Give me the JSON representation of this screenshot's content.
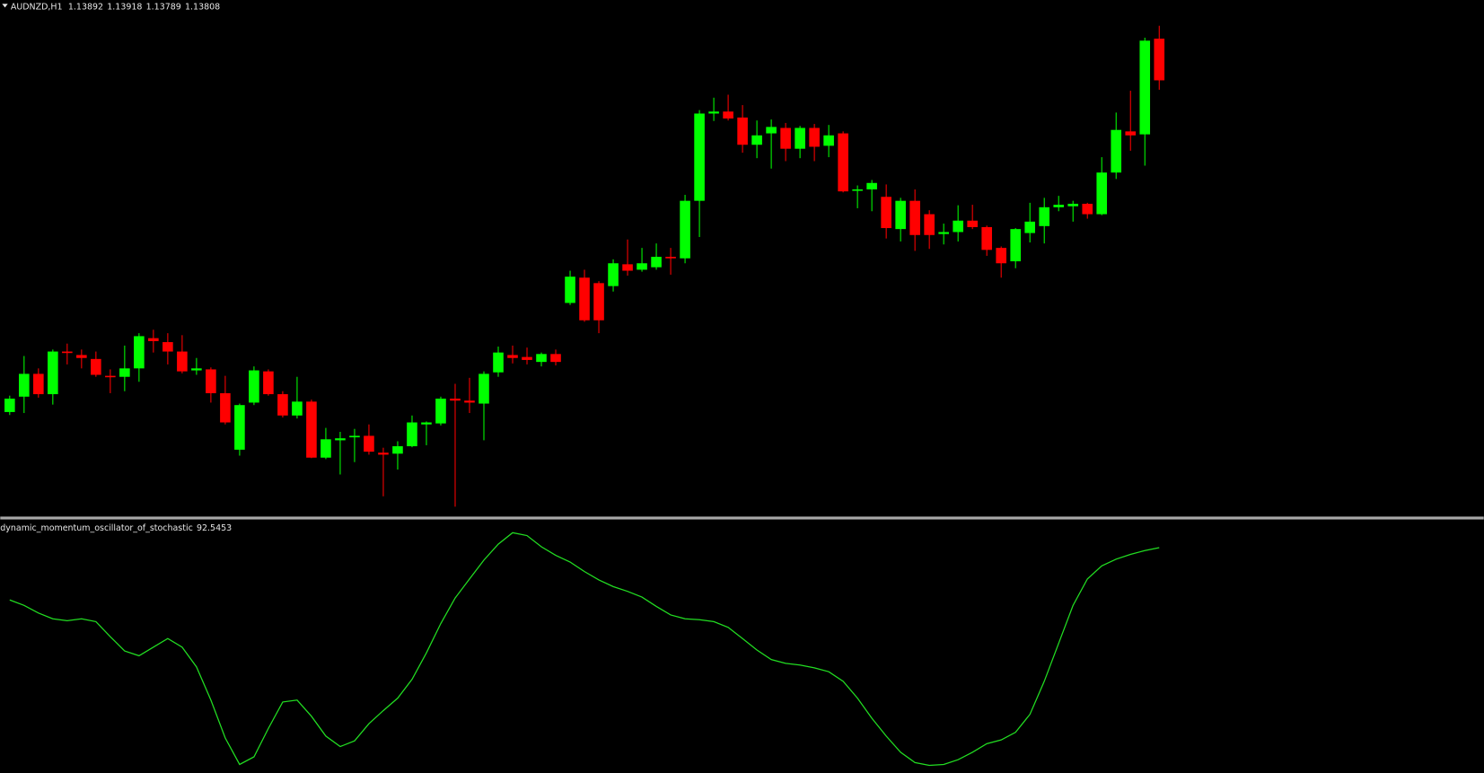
{
  "chart_data": [
    {
      "type": "candlestick",
      "title": "AUDNZD,H1",
      "open": [
        1.13139,
        1.1317,
        1.13216,
        1.13175,
        1.13261,
        1.13254,
        1.13246,
        1.13212,
        1.1321,
        1.13227,
        1.13288,
        1.1328,
        1.13261,
        1.13223,
        1.13225,
        1.13177,
        1.13063,
        1.13158,
        1.13221,
        1.13175,
        1.13132,
        1.1316,
        1.13047,
        1.13082,
        1.13088,
        1.13091,
        1.13057,
        1.13055,
        1.1307,
        1.13114,
        1.13116,
        1.13166,
        1.13162,
        1.13156,
        1.13219,
        1.13254,
        1.1325,
        1.1324,
        1.13256,
        1.13359,
        1.1341,
        1.13399,
        1.13393,
        1.13437,
        1.13426,
        1.13431,
        1.13452,
        1.13449,
        1.13565,
        1.13741,
        1.13745,
        1.13733,
        1.13678,
        1.13701,
        1.13712,
        1.1367,
        1.13712,
        1.13676,
        1.13701,
        1.13586,
        1.13588,
        1.13573,
        1.13508,
        1.13565,
        1.13538,
        1.13498,
        1.13502,
        1.13525,
        1.13512,
        1.1347,
        1.13443,
        1.135,
        1.13514,
        1.13552,
        1.13554,
        1.13559,
        1.13538,
        1.13622,
        1.13705,
        1.13699,
        1.13892
      ],
      "high": [
        1.13172,
        1.13252,
        1.13227,
        1.13265,
        1.13277,
        1.13265,
        1.13261,
        1.13225,
        1.13273,
        1.13298,
        1.13305,
        1.13298,
        1.13294,
        1.13248,
        1.13229,
        1.13212,
        1.13156,
        1.13231,
        1.13225,
        1.13181,
        1.1321,
        1.13164,
        1.13107,
        1.13099,
        1.13105,
        1.13114,
        1.13067,
        1.1308,
        1.13132,
        1.1312,
        1.1317,
        1.13196,
        1.13208,
        1.13221,
        1.13271,
        1.13273,
        1.13269,
        1.13259,
        1.13265,
        1.13424,
        1.13426,
        1.13403,
        1.13447,
        1.13487,
        1.1347,
        1.13479,
        1.1347,
        1.13577,
        1.13748,
        1.13773,
        1.13779,
        1.13758,
        1.13727,
        1.13729,
        1.13722,
        1.13716,
        1.1372,
        1.13718,
        1.13705,
        1.13596,
        1.13607,
        1.13598,
        1.13571,
        1.13588,
        1.13546,
        1.13519,
        1.13556,
        1.13557,
        1.13515,
        1.13473,
        1.1351,
        1.13561,
        1.13571,
        1.13575,
        1.13565,
        1.13561,
        1.13653,
        1.13743,
        1.13787,
        1.13894,
        1.13918
      ],
      "low": [
        1.13133,
        1.13137,
        1.13168,
        1.13154,
        1.13235,
        1.13227,
        1.1321,
        1.13177,
        1.13181,
        1.132,
        1.13259,
        1.13235,
        1.13217,
        1.13214,
        1.13158,
        1.13114,
        1.13051,
        1.13153,
        1.13172,
        1.13128,
        1.13126,
        1.13046,
        1.13044,
        1.13013,
        1.13038,
        1.13053,
        1.12969,
        1.13023,
        1.13068,
        1.13072,
        1.13112,
        1.12948,
        1.13137,
        1.13082,
        1.1321,
        1.13237,
        1.13235,
        1.13231,
        1.13233,
        1.13355,
        1.13321,
        1.13298,
        1.13382,
        1.13414,
        1.13422,
        1.13426,
        1.13416,
        1.13439,
        1.13492,
        1.13726,
        1.13727,
        1.13662,
        1.13651,
        1.1363,
        1.13645,
        1.13651,
        1.13645,
        1.13653,
        1.13582,
        1.1355,
        1.13544,
        1.13489,
        1.13483,
        1.13464,
        1.13468,
        1.13477,
        1.13483,
        1.13508,
        1.13454,
        1.1341,
        1.13429,
        1.13481,
        1.13479,
        1.13544,
        1.13523,
        1.13529,
        1.13536,
        1.13609,
        1.13666,
        1.13636,
        1.13789
      ],
      "close": [
        1.13166,
        1.13216,
        1.13175,
        1.13261,
        1.13258,
        1.13248,
        1.13214,
        1.1321,
        1.13227,
        1.13292,
        1.13282,
        1.13261,
        1.13221,
        1.13227,
        1.13177,
        1.13118,
        1.13153,
        1.13223,
        1.13175,
        1.13132,
        1.1316,
        1.13047,
        1.13084,
        1.13086,
        1.13091,
        1.13059,
        1.13053,
        1.1307,
        1.13118,
        1.13118,
        1.13166,
        1.13162,
        1.13158,
        1.13216,
        1.13259,
        1.13248,
        1.13244,
        1.13256,
        1.1324,
        1.13412,
        1.13324,
        1.13324,
        1.13439,
        1.13424,
        1.13439,
        1.13452,
        1.13449,
        1.13565,
        1.13741,
        1.13745,
        1.13731,
        1.13678,
        1.13697,
        1.13714,
        1.1367,
        1.13712,
        1.13674,
        1.13697,
        1.13584,
        1.13588,
        1.13601,
        1.1351,
        1.13565,
        1.13496,
        1.13496,
        1.13502,
        1.13525,
        1.13512,
        1.13466,
        1.13439,
        1.13508,
        1.13523,
        1.13552,
        1.13557,
        1.13559,
        1.13538,
        1.13622,
        1.13708,
        1.13697,
        1.13888,
        1.13808
      ],
      "up_color": "#00ff00",
      "down_color": "#ff0000",
      "ylim": [
        1.1293,
        1.1397
      ]
    },
    {
      "type": "line",
      "title": "dynamic_momentum_oscillator_of_stochastic",
      "values": [
        70.6,
        68.3,
        65.1,
        62.7,
        61.9,
        62.7,
        61.5,
        55.2,
        49.2,
        47.2,
        50.8,
        54.4,
        50.8,
        42.5,
        28.6,
        12.7,
        1.6,
        4.8,
        16.7,
        27.8,
        28.6,
        21.8,
        13.5,
        9.1,
        11.5,
        18.7,
        24.2,
        29.4,
        37.3,
        48.4,
        60.7,
        71.4,
        79.4,
        87.3,
        94.0,
        98.8,
        97.6,
        92.9,
        89.3,
        86.5,
        82.5,
        79.0,
        76.2,
        74.2,
        71.8,
        67.9,
        64.3,
        62.7,
        62.3,
        61.5,
        59.1,
        54.4,
        49.6,
        45.6,
        44.0,
        43.3,
        42.1,
        40.5,
        36.5,
        29.4,
        21.0,
        13.5,
        6.7,
        2.4,
        1.2,
        1.6,
        3.6,
        6.7,
        10.3,
        11.9,
        15.1,
        22.6,
        36.5,
        52.4,
        68.3,
        79.4,
        84.9,
        87.7,
        89.7,
        91.3,
        92.5453
      ],
      "color": "#22dd22",
      "ylim": [
        0,
        100
      ]
    }
  ]
}
